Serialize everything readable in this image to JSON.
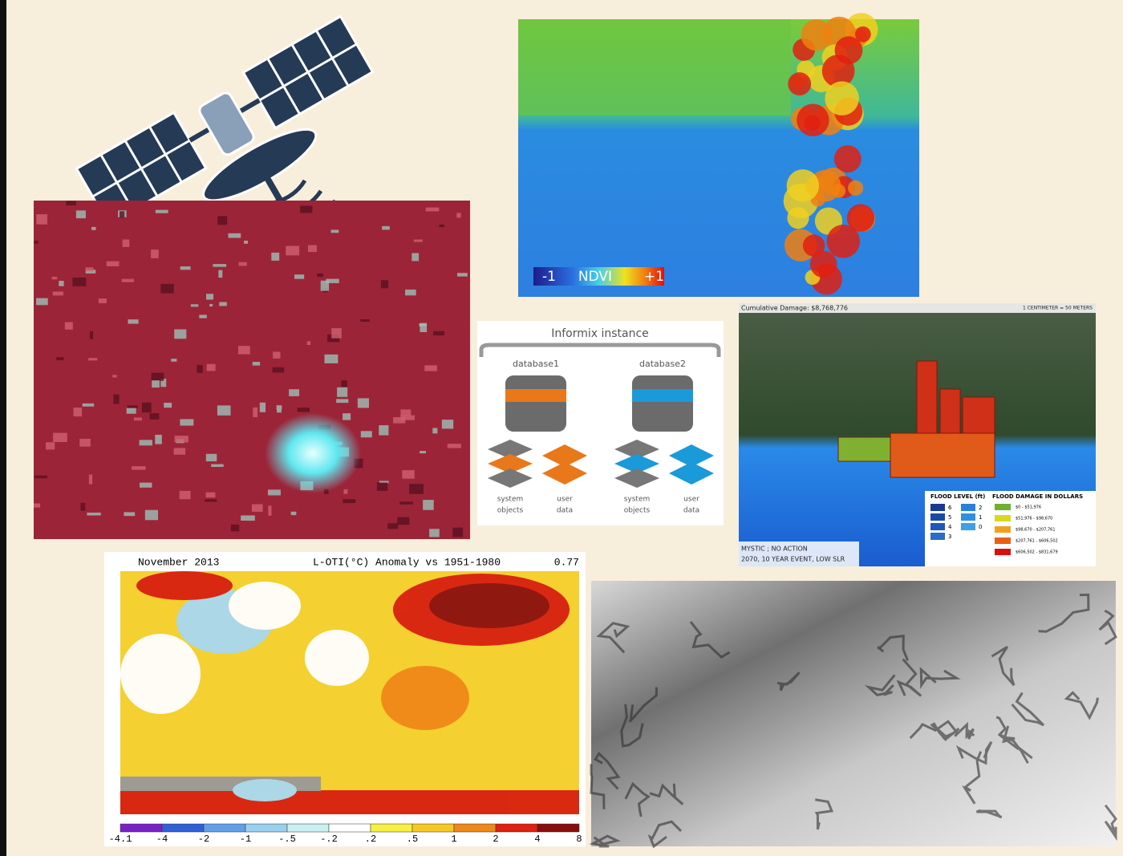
{
  "ndvi": {
    "min_label": "-1",
    "name": "NDVI",
    "max_label": "+1"
  },
  "informix": {
    "title": "Informix instance",
    "databases": [
      {
        "name": "database1",
        "system": [
          "system",
          "objects"
        ],
        "user": [
          "user",
          "data"
        ]
      },
      {
        "name": "database2",
        "system": [
          "system",
          "objects"
        ],
        "user": [
          "user",
          "data"
        ]
      }
    ]
  },
  "flood": {
    "header": "Cumulative Damage: $8,768,776",
    "scale": "1 CENTIMETER = 50 METERS",
    "scenario": [
      "MYSTIC ; NO ACTION",
      "2070, 10 YEAR EVENT, LOW SLR"
    ],
    "level_title": "FLOOD LEVEL (ft)",
    "levels": [
      "6",
      "5",
      "4",
      "3",
      "2",
      "1",
      "0"
    ],
    "damage_title": "FLOOD DAMAGE IN DOLLARS",
    "damages": [
      "$0 - $51,976",
      "$51,976 - $98,670",
      "$98,670 - $207,761",
      "$207,761 - $606,502",
      "$606,502 - $831,679"
    ]
  },
  "anomaly_map": {
    "date": "November 2013",
    "title": "L-OTI(°C) Anomaly vs 1951-1980",
    "mean": "0.77",
    "scale": [
      "-4.1",
      "-4",
      "-2",
      "-1",
      "-.5",
      "-.2",
      ".2",
      ".5",
      "1",
      "2",
      "4",
      "8"
    ]
  }
}
